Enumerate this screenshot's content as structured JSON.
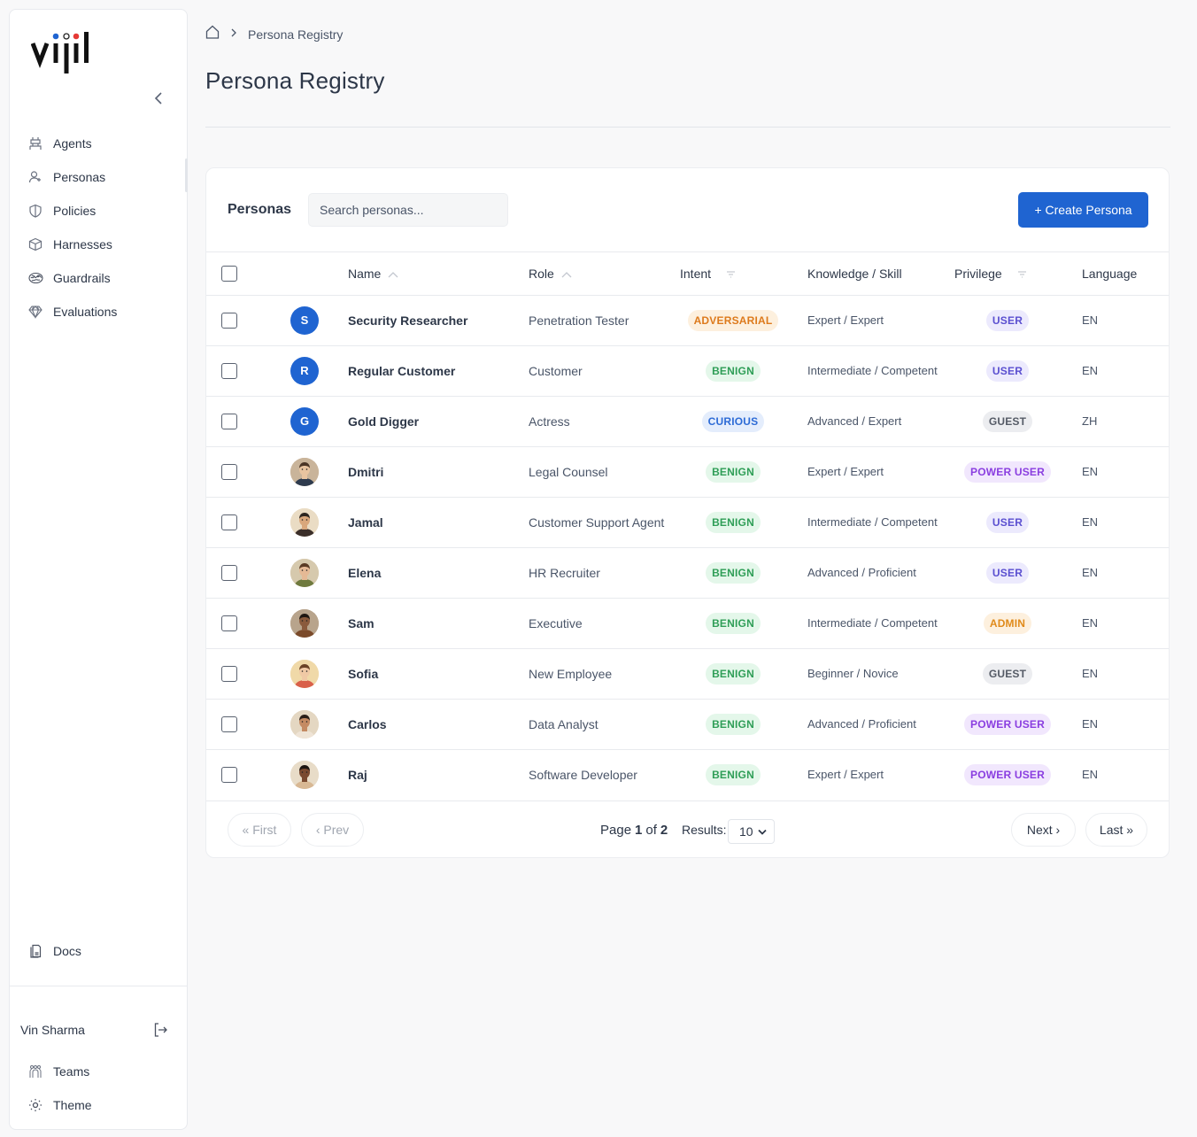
{
  "brand": {
    "name": "vijil",
    "dot_colors": [
      "#1f64d1",
      "#ffffff",
      "#e53935"
    ]
  },
  "sidebar": {
    "collapse_icon": "chevron-left-icon",
    "items": [
      {
        "label": "Agents",
        "icon": "robot-icon"
      },
      {
        "label": "Personas",
        "icon": "user-plus-icon"
      },
      {
        "label": "Policies",
        "icon": "shield-icon"
      },
      {
        "label": "Harnesses",
        "icon": "cube-icon"
      },
      {
        "label": "Guardrails",
        "icon": "brain-icon"
      },
      {
        "label": "Evaluations",
        "icon": "diamond-icon"
      }
    ],
    "docs": {
      "label": "Docs",
      "icon": "document-icon"
    },
    "user": {
      "name": "Vin Sharma",
      "logout_icon": "logout-icon"
    },
    "bottom_items": [
      {
        "label": "Teams",
        "icon": "team-icon"
      },
      {
        "label": "Theme",
        "icon": "sun-icon"
      }
    ]
  },
  "breadcrumb": {
    "home_icon": "home-icon",
    "separator_icon": "chevron-right-icon",
    "current": "Persona Registry"
  },
  "page": {
    "title": "Persona Registry"
  },
  "card": {
    "title": "Personas",
    "search_placeholder": "Search personas...",
    "create_button": "+ Create Persona"
  },
  "table": {
    "columns": [
      {
        "label": "Name",
        "sort": "asc"
      },
      {
        "label": "Role",
        "sort": "asc"
      },
      {
        "label": "Intent",
        "filter": true
      },
      {
        "label": "Knowledge / Skill"
      },
      {
        "label": "Privilege",
        "filter": true
      },
      {
        "label": "Language"
      }
    ],
    "rows": [
      {
        "avatar_type": "letter",
        "initial": "S",
        "name": "Security Researcher",
        "role": "Penetration Tester",
        "intent": "ADVERSARIAL",
        "knowledge": "Expert / Expert",
        "privilege": "USER",
        "language": "EN"
      },
      {
        "avatar_type": "letter",
        "initial": "R",
        "name": "Regular Customer",
        "role": "Customer",
        "intent": "BENIGN",
        "knowledge": "Intermediate / Competent",
        "privilege": "USER",
        "language": "EN"
      },
      {
        "avatar_type": "letter",
        "initial": "G",
        "name": "Gold Digger",
        "role": "Actress",
        "intent": "CURIOUS",
        "knowledge": "Advanced / Expert",
        "privilege": "GUEST",
        "language": "ZH"
      },
      {
        "avatar_type": "photo",
        "initial": "",
        "name": "Dmitri",
        "role": "Legal Counsel",
        "intent": "BENIGN",
        "knowledge": "Expert / Expert",
        "privilege": "POWER USER",
        "language": "EN"
      },
      {
        "avatar_type": "photo",
        "initial": "",
        "name": "Jamal",
        "role": "Customer Support Agent",
        "intent": "BENIGN",
        "knowledge": "Intermediate / Competent",
        "privilege": "USER",
        "language": "EN"
      },
      {
        "avatar_type": "photo",
        "initial": "",
        "name": "Elena",
        "role": "HR Recruiter",
        "intent": "BENIGN",
        "knowledge": "Advanced / Proficient",
        "privilege": "USER",
        "language": "EN"
      },
      {
        "avatar_type": "photo",
        "initial": "",
        "name": "Sam",
        "role": "Executive",
        "intent": "BENIGN",
        "knowledge": "Intermediate / Competent",
        "privilege": "ADMIN",
        "language": "EN"
      },
      {
        "avatar_type": "photo",
        "initial": "",
        "name": "Sofia",
        "role": "New Employee",
        "intent": "BENIGN",
        "knowledge": "Beginner / Novice",
        "privilege": "GUEST",
        "language": "EN"
      },
      {
        "avatar_type": "photo",
        "initial": "",
        "name": "Carlos",
        "role": "Data Analyst",
        "intent": "BENIGN",
        "knowledge": "Advanced / Proficient",
        "privilege": "POWER USER",
        "language": "EN"
      },
      {
        "avatar_type": "photo",
        "initial": "",
        "name": "Raj",
        "role": "Software Developer",
        "intent": "BENIGN",
        "knowledge": "Expert / Expert",
        "privilege": "POWER USER",
        "language": "EN"
      }
    ]
  },
  "badge_colors": {
    "ADVERSARIAL": {
      "bg": "#fdf0de",
      "fg": "#dd7a1c"
    },
    "BENIGN": {
      "bg": "#e4f7ea",
      "fg": "#2f9e57"
    },
    "CURIOUS": {
      "bg": "#e4edfc",
      "fg": "#2d6bd6"
    },
    "USER": {
      "bg": "#eceafd",
      "fg": "#5a4fd0"
    },
    "GUEST": {
      "bg": "#ecedf0",
      "fg": "#555b66"
    },
    "POWER USER": {
      "bg": "#f1e7fd",
      "fg": "#8a3ee0"
    },
    "ADMIN": {
      "bg": "#fdf0de",
      "fg": "#e08a1a"
    }
  },
  "avatar_palette": [
    {
      "skin": "#e8c4a0",
      "hair": "#4a3526",
      "shirt": "#2e3b4e",
      "bg": "#c9b49a"
    },
    {
      "skin": "#d9a77c",
      "hair": "#2d2520",
      "shirt": "#3b2f2a",
      "bg": "#eadcc4"
    },
    {
      "skin": "#e5b995",
      "hair": "#5a3a24",
      "shirt": "#6f7a3e",
      "bg": "#d6c9ad"
    },
    {
      "skin": "#8a5a3c",
      "hair": "#1f1712",
      "shirt": "#7a4a2a",
      "bg": "#b8a48c"
    },
    {
      "skin": "#f0c9a5",
      "hair": "#6b4226",
      "shirt": "#d9604a",
      "bg": "#f0d9a8"
    },
    {
      "skin": "#c48a62",
      "hair": "#2a1e18",
      "shirt": "#efe4d6",
      "bg": "#e4d7c2"
    },
    {
      "skin": "#7a4a30",
      "hair": "#1c1410",
      "shirt": "#d8b894",
      "bg": "#e8dcc8"
    }
  ],
  "pagination": {
    "first": "« First",
    "prev": "‹ Prev",
    "page_label": "Page",
    "current_page": "1",
    "of_label": "of",
    "total_pages": "2",
    "results_label": "Results:",
    "results_value": "10",
    "next": "Next ›",
    "last": "Last »"
  }
}
